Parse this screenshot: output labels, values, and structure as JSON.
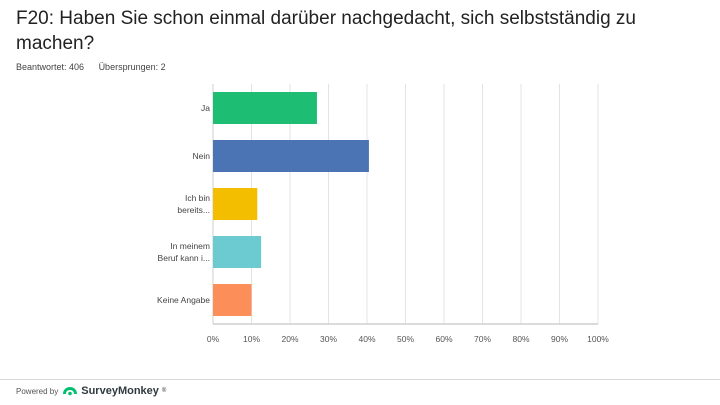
{
  "question": {
    "title": "F20: Haben Sie schon einmal darüber nachgedacht, sich selbstständig zu machen?",
    "answered_label": "Beantwortet: 406",
    "skipped_label": "Übersprungen: 2"
  },
  "chart_data": {
    "type": "bar",
    "orientation": "horizontal",
    "categories": [
      "Ja",
      "Nein",
      "Ich bin bereits...",
      "In meinem Beruf kann i...",
      "Keine Angabe"
    ],
    "category_lines": [
      [
        "Ja"
      ],
      [
        "Nein"
      ],
      [
        "Ich bin",
        "bereits..."
      ],
      [
        "In meinem",
        "Beruf kann i..."
      ],
      [
        "Keine Angabe"
      ]
    ],
    "values": [
      27,
      40.5,
      11.5,
      12.5,
      10
    ],
    "colors": [
      "#1ebd74",
      "#4a74b3",
      "#f4be00",
      "#6ccbd0",
      "#fb8e59"
    ],
    "xlim": [
      0,
      100
    ],
    "xticks": [
      "0%",
      "10%",
      "20%",
      "30%",
      "40%",
      "50%",
      "60%",
      "70%",
      "80%",
      "90%",
      "100%"
    ],
    "grid": true
  },
  "footer": {
    "powered_by": "Powered by",
    "brand": "SurveyMonkey",
    "brand_mark": "®",
    "brand_color": "#00bf6f"
  }
}
